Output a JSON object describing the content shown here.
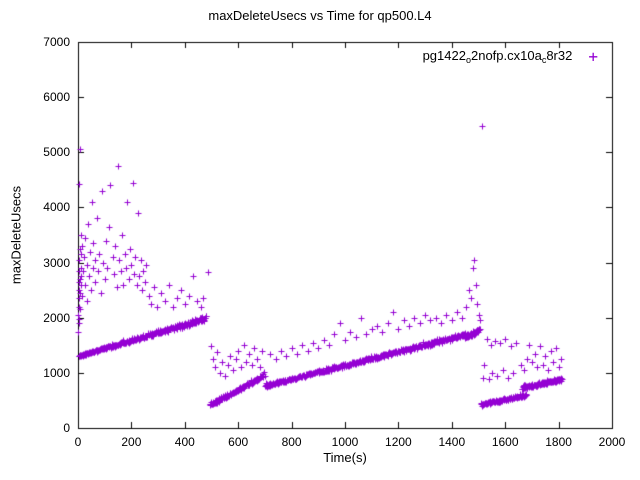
{
  "chart_data": {
    "type": "scatter",
    "title": "maxDeleteUsecs vs Time for qp500.L4",
    "xlabel": "Time(s)",
    "ylabel": "maxDeleteUsecs",
    "xlim": [
      0,
      2000
    ],
    "ylim": [
      0,
      7000
    ],
    "xticks": [
      0,
      200,
      400,
      600,
      800,
      1000,
      1200,
      1400,
      1600,
      1800,
      2000
    ],
    "yticks": [
      0,
      1000,
      2000,
      3000,
      4000,
      5000,
      6000,
      7000
    ],
    "grid": false,
    "legend_position": "top-right-inside",
    "marker": "plus",
    "series": [
      {
        "name": "pg1422o2nofp.cx10ac8r32",
        "label_parts": [
          {
            "text": "pg1422",
            "sub": false
          },
          {
            "text": "o",
            "sub": true
          },
          {
            "text": "2nofp.cx10a",
            "sub": false
          },
          {
            "text": "c",
            "sub": true
          },
          {
            "text": "8r32",
            "sub": false
          }
        ],
        "color": "#9400d3",
        "dense_bands": [
          {
            "x0": 2,
            "x1": 480,
            "y0": 1310,
            "y1": 1990,
            "n": 300,
            "spread": 35,
            "spread_end": 75
          },
          {
            "x0": 492,
            "x1": 692,
            "y0": 420,
            "y1": 940,
            "n": 130,
            "spread": 50,
            "spread_end": 55
          },
          {
            "x0": 700,
            "x1": 1452,
            "y0": 770,
            "y1": 1700,
            "n": 430,
            "spread": 45,
            "spread_end": 60
          },
          {
            "x0": 1448,
            "x1": 1505,
            "y0": 1650,
            "y1": 1780,
            "n": 50,
            "spread": 60,
            "spread_end": 60
          },
          {
            "x0": 1508,
            "x1": 1680,
            "y0": 430,
            "y1": 600,
            "n": 110,
            "spread": 40,
            "spread_end": 40
          },
          {
            "x0": 1662,
            "x1": 1812,
            "y0": 730,
            "y1": 890,
            "n": 110,
            "spread": 45,
            "spread_end": 45
          }
        ],
        "points": [
          [
            1,
            1750
          ],
          [
            1,
            2050
          ],
          [
            2,
            2350
          ],
          [
            2,
            2650
          ],
          [
            2,
            4430
          ],
          [
            3,
            3050
          ],
          [
            3,
            1900
          ],
          [
            4,
            2500
          ],
          [
            4,
            2200
          ],
          [
            5,
            2850
          ],
          [
            5,
            1980
          ],
          [
            6,
            3250
          ],
          [
            7,
            2700
          ],
          [
            8,
            5060
          ],
          [
            8,
            2450
          ],
          [
            9,
            2150
          ],
          [
            10,
            2900
          ],
          [
            10,
            3500
          ],
          [
            11,
            2600
          ],
          [
            12,
            3150
          ],
          [
            13,
            2750
          ],
          [
            14,
            2400
          ],
          [
            15,
            3300
          ],
          [
            18,
            2850
          ],
          [
            22,
            3100
          ],
          [
            25,
            2600
          ],
          [
            28,
            3450
          ],
          [
            32,
            2300
          ],
          [
            35,
            2950
          ],
          [
            38,
            3700
          ],
          [
            42,
            2750
          ],
          [
            45,
            3200
          ],
          [
            48,
            2500
          ],
          [
            52,
            4100
          ],
          [
            55,
            2900
          ],
          [
            58,
            3350
          ],
          [
            62,
            2650
          ],
          [
            65,
            3050
          ],
          [
            70,
            3800
          ],
          [
            75,
            2850
          ],
          [
            80,
            3150
          ],
          [
            85,
            2450
          ],
          [
            90,
            4300
          ],
          [
            95,
            3000
          ],
          [
            100,
            2700
          ],
          [
            105,
            3400
          ],
          [
            110,
            2900
          ],
          [
            115,
            3650
          ],
          [
            120,
            4400
          ],
          [
            130,
            3100
          ],
          [
            135,
            2800
          ],
          [
            140,
            3300
          ],
          [
            145,
            2550
          ],
          [
            150,
            4750
          ],
          [
            155,
            3050
          ],
          [
            160,
            2850
          ],
          [
            165,
            3500
          ],
          [
            170,
            2600
          ],
          [
            175,
            3150
          ],
          [
            180,
            2900
          ],
          [
            185,
            4100
          ],
          [
            190,
            2700
          ],
          [
            195,
            3250
          ],
          [
            200,
            2950
          ],
          [
            205,
            4450
          ],
          [
            210,
            2800
          ],
          [
            215,
            3100
          ],
          [
            220,
            2600
          ],
          [
            225,
            3900
          ],
          [
            230,
            2750
          ],
          [
            235,
            3050
          ],
          [
            240,
            2500
          ],
          [
            245,
            2850
          ],
          [
            250,
            2650
          ],
          [
            255,
            2950
          ],
          [
            265,
            2400
          ],
          [
            275,
            2250
          ],
          [
            285,
            2550
          ],
          [
            295,
            2200
          ],
          [
            310,
            2450
          ],
          [
            325,
            2300
          ],
          [
            340,
            2600
          ],
          [
            355,
            2200
          ],
          [
            370,
            2350
          ],
          [
            385,
            2500
          ],
          [
            400,
            2250
          ],
          [
            415,
            2400
          ],
          [
            430,
            2750
          ],
          [
            445,
            2300
          ],
          [
            460,
            2200
          ],
          [
            470,
            2350
          ],
          [
            487,
            2820
          ],
          [
            497,
            1480
          ],
          [
            505,
            1250
          ],
          [
            512,
            1100
          ],
          [
            520,
            1380
          ],
          [
            530,
            1000
          ],
          [
            540,
            1200
          ],
          [
            550,
            950
          ],
          [
            560,
            1150
          ],
          [
            570,
            1300
          ],
          [
            580,
            1050
          ],
          [
            590,
            1250
          ],
          [
            600,
            1400
          ],
          [
            610,
            1100
          ],
          [
            620,
            1500
          ],
          [
            630,
            1200
          ],
          [
            640,
            1350
          ],
          [
            650,
            1150
          ],
          [
            660,
            1450
          ],
          [
            670,
            1250
          ],
          [
            680,
            1100
          ],
          [
            690,
            1400
          ],
          [
            692,
            980
          ],
          [
            696,
            1010
          ],
          [
            700,
            940
          ],
          [
            705,
            820
          ],
          [
            710,
            760
          ],
          [
            715,
            800
          ],
          [
            720,
            1350
          ],
          [
            740,
            1250
          ],
          [
            760,
            1400
          ],
          [
            780,
            1300
          ],
          [
            800,
            1450
          ],
          [
            820,
            1350
          ],
          [
            840,
            1500
          ],
          [
            860,
            1400
          ],
          [
            880,
            1550
          ],
          [
            900,
            1450
          ],
          [
            920,
            1600
          ],
          [
            940,
            1500
          ],
          [
            960,
            1700
          ],
          [
            980,
            1900
          ],
          [
            1000,
            1600
          ],
          [
            1020,
            1750
          ],
          [
            1040,
            1650
          ],
          [
            1060,
            2000
          ],
          [
            1080,
            1700
          ],
          [
            1100,
            1800
          ],
          [
            1120,
            1850
          ],
          [
            1140,
            1750
          ],
          [
            1160,
            1900
          ],
          [
            1180,
            2100
          ],
          [
            1200,
            1800
          ],
          [
            1220,
            1950
          ],
          [
            1240,
            1850
          ],
          [
            1260,
            2000
          ],
          [
            1280,
            1900
          ],
          [
            1300,
            2050
          ],
          [
            1320,
            1950
          ],
          [
            1340,
            2000
          ],
          [
            1360,
            1900
          ],
          [
            1380,
            2050
          ],
          [
            1400,
            1950
          ],
          [
            1420,
            2100
          ],
          [
            1440,
            2000
          ],
          [
            1455,
            2200
          ],
          [
            1465,
            2500
          ],
          [
            1472,
            2350
          ],
          [
            1478,
            2900
          ],
          [
            1485,
            3050
          ],
          [
            1490,
            2600
          ],
          [
            1495,
            2250
          ],
          [
            1500,
            2050
          ],
          [
            1505,
            1950
          ],
          [
            1512,
            5480
          ],
          [
            1515,
            900
          ],
          [
            1522,
            1150
          ],
          [
            1530,
            1620
          ],
          [
            1538,
            880
          ],
          [
            1545,
            1500
          ],
          [
            1552,
            1000
          ],
          [
            1560,
            1580
          ],
          [
            1570,
            950
          ],
          [
            1580,
            1550
          ],
          [
            1590,
            1050
          ],
          [
            1600,
            1620
          ],
          [
            1610,
            900
          ],
          [
            1620,
            1480
          ],
          [
            1630,
            1000
          ],
          [
            1640,
            1550
          ],
          [
            1655,
            620
          ],
          [
            1660,
            1150
          ],
          [
            1670,
            1050
          ],
          [
            1680,
            1250
          ],
          [
            1690,
            1500
          ],
          [
            1700,
            1200
          ],
          [
            1710,
            1350
          ],
          [
            1720,
            1100
          ],
          [
            1730,
            1480
          ],
          [
            1740,
            1150
          ],
          [
            1750,
            1300
          ],
          [
            1760,
            1050
          ],
          [
            1770,
            1400
          ],
          [
            1780,
            1200
          ],
          [
            1790,
            1450
          ],
          [
            1800,
            1100
          ],
          [
            1808,
            1250
          ]
        ]
      }
    ]
  }
}
